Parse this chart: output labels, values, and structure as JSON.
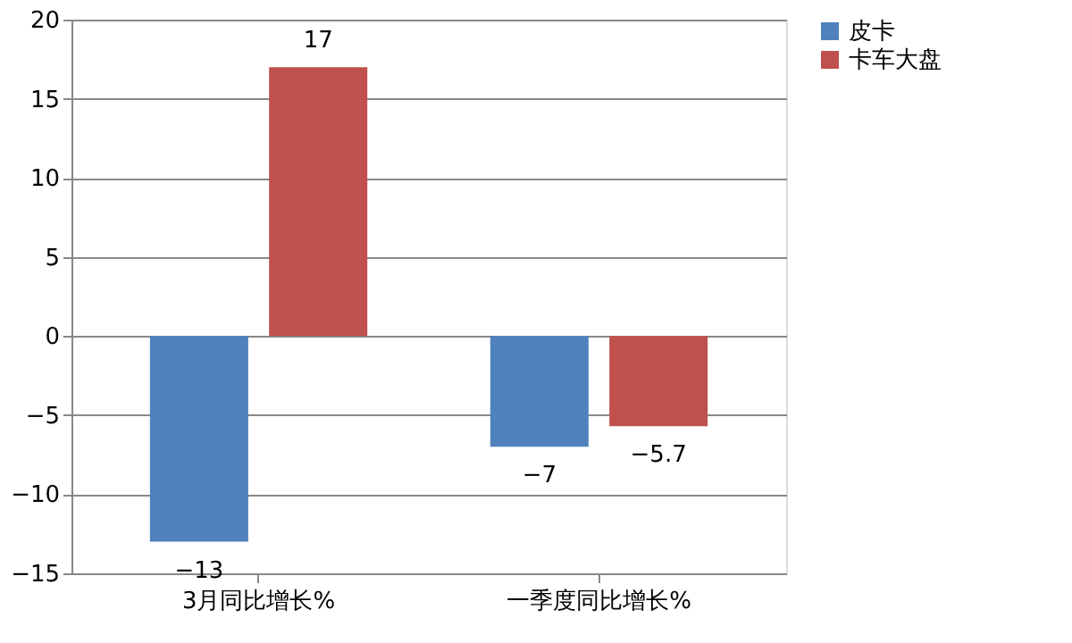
{
  "chart_data": {
    "type": "bar",
    "categories": [
      "3月同比增长%",
      "一季度同比增长%"
    ],
    "series": [
      {
        "name": "皮卡",
        "color": "#4f81bd",
        "values": [
          -13,
          -7
        ]
      },
      {
        "name": "卡车大盘",
        "color": "#c0504d",
        "values": [
          17,
          -5.7
        ]
      }
    ],
    "ylim": [
      -15,
      20
    ],
    "yticks": [
      -15,
      -10,
      -5,
      0,
      5,
      10,
      15,
      20
    ],
    "grid": "y",
    "legend": "right",
    "data_labels": true
  }
}
